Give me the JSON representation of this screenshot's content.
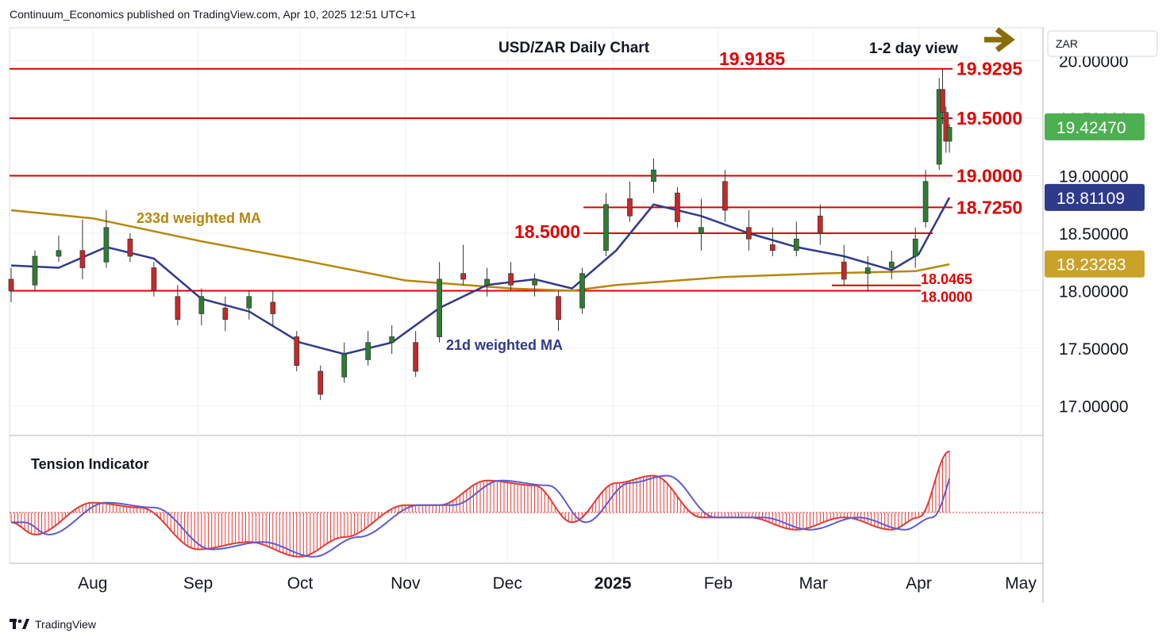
{
  "publisher": "Continuum_Economics published on TradingView.com, Apr 10, 2025 12:51 UTC+1",
  "footer": {
    "brand": "TradingView",
    "logo_icon": "tradingview-logo-icon"
  },
  "currency_label": "ZAR",
  "colors": {
    "up": "#2e7d32",
    "down": "#c62828",
    "level": "#e00000",
    "ma21": "#2f3a8c",
    "ma233": "#b8860b",
    "tension_fill": "#e53935",
    "tension_line": "#5b5bd6",
    "price_badge": "#4caf50",
    "ma21_badge": "#2f3a8c",
    "ma233_badge": "#c9a227"
  },
  "chart_data": [
    {
      "type": "candlestick",
      "title": "USD/ZAR Daily Chart",
      "annotation": "1-2 day view",
      "annotation_icon": "arrow-right-icon",
      "x_ticks": [
        "Aug",
        "Sep",
        "Oct",
        "Nov",
        "Dec",
        "2025",
        "Feb",
        "Mar",
        "Apr",
        "May"
      ],
      "y_ticks": [
        "20.00000",
        "19.50000",
        "19.00000",
        "18.50000",
        "18.00000",
        "17.50000",
        "17.00000"
      ],
      "ylim": [
        16.75,
        20.25
      ],
      "log_scale": false,
      "grid": true,
      "price_badges": [
        {
          "label": "19.42470",
          "value": 19.4247,
          "kind": "price"
        },
        {
          "label": "18.81109",
          "value": 18.81109,
          "kind": "ma21"
        },
        {
          "label": "18.23283",
          "value": 18.23283,
          "kind": "ma233"
        }
      ],
      "levels": [
        {
          "label": "19.9295",
          "value": 19.9295
        },
        {
          "label": "19.5000",
          "value": 19.5
        },
        {
          "label": "19.0000",
          "value": 19.0
        },
        {
          "label": "18.7250",
          "value": 18.725
        },
        {
          "label": "18.5000",
          "value": 18.5
        },
        {
          "label": "18.0465",
          "value": 18.0465
        },
        {
          "label": "18.0000",
          "value": 18.0
        }
      ],
      "peak_label": "19.9185",
      "series": [
        {
          "name": "233d weighted MA",
          "x": [
            "2024-07-08",
            "2024-08-01",
            "2024-09-02",
            "2024-10-01",
            "2024-11-01",
            "2024-12-02",
            "2024-12-20",
            "2025-01-02",
            "2025-02-03",
            "2025-03-03",
            "2025-03-31",
            "2025-04-10"
          ],
          "values": [
            18.7,
            18.63,
            18.43,
            18.27,
            18.09,
            18.02,
            18.0,
            18.05,
            18.12,
            18.15,
            18.17,
            18.23
          ]
        },
        {
          "name": "21d weighted MA",
          "x": [
            "2024-07-08",
            "2024-07-22",
            "2024-08-05",
            "2024-08-19",
            "2024-09-02",
            "2024-09-16",
            "2024-10-01",
            "2024-10-14",
            "2024-10-28",
            "2024-11-11",
            "2024-11-25",
            "2024-12-09",
            "2024-12-20",
            "2025-01-02",
            "2025-01-13",
            "2025-01-27",
            "2025-02-10",
            "2025-02-24",
            "2025-03-10",
            "2025-03-24",
            "2025-04-01",
            "2025-04-10"
          ],
          "values": [
            18.22,
            18.2,
            18.38,
            18.28,
            17.93,
            17.82,
            17.55,
            17.45,
            17.55,
            17.85,
            18.05,
            18.1,
            18.02,
            18.35,
            18.75,
            18.65,
            18.5,
            18.38,
            18.3,
            18.18,
            18.32,
            18.81
          ]
        }
      ],
      "ohlc_approx": [
        [
          "2024-07-08",
          18.1,
          18.2,
          17.9,
          18.0
        ],
        [
          "2024-07-15",
          18.05,
          18.35,
          18.0,
          18.3
        ],
        [
          "2024-07-22",
          18.3,
          18.48,
          18.25,
          18.35
        ],
        [
          "2024-07-29",
          18.35,
          18.62,
          18.1,
          18.2
        ],
        [
          "2024-08-05",
          18.25,
          18.7,
          18.2,
          18.55
        ],
        [
          "2024-08-12",
          18.45,
          18.5,
          18.25,
          18.3
        ],
        [
          "2024-08-19",
          18.2,
          18.25,
          17.95,
          18.0
        ],
        [
          "2024-08-26",
          17.95,
          18.05,
          17.7,
          17.75
        ],
        [
          "2024-09-02",
          17.8,
          18.02,
          17.7,
          17.95
        ],
        [
          "2024-09-09",
          17.85,
          17.95,
          17.65,
          17.75
        ],
        [
          "2024-09-16",
          17.85,
          18.0,
          17.75,
          17.95
        ],
        [
          "2024-09-23",
          17.9,
          18.0,
          17.7,
          17.8
        ],
        [
          "2024-09-30",
          17.6,
          17.65,
          17.3,
          17.35
        ],
        [
          "2024-10-07",
          17.3,
          17.35,
          17.05,
          17.1
        ],
        [
          "2024-10-14",
          17.25,
          17.55,
          17.2,
          17.45
        ],
        [
          "2024-10-21",
          17.4,
          17.65,
          17.35,
          17.55
        ],
        [
          "2024-10-28",
          17.55,
          17.7,
          17.45,
          17.6
        ],
        [
          "2024-11-04",
          17.55,
          17.65,
          17.25,
          17.3
        ],
        [
          "2024-11-11",
          17.6,
          18.25,
          17.55,
          18.1
        ],
        [
          "2024-11-18",
          18.15,
          18.4,
          18.05,
          18.1
        ],
        [
          "2024-11-25",
          18.05,
          18.2,
          17.95,
          18.1
        ],
        [
          "2024-12-02",
          18.15,
          18.25,
          18.0,
          18.05
        ],
        [
          "2024-12-09",
          18.05,
          18.15,
          17.95,
          18.1
        ],
        [
          "2024-12-16",
          17.95,
          18.0,
          17.65,
          17.75
        ],
        [
          "2024-12-23",
          17.85,
          18.2,
          17.8,
          18.15
        ],
        [
          "2024-12-30",
          18.35,
          18.85,
          18.3,
          18.75
        ],
        [
          "2025-01-06",
          18.8,
          18.95,
          18.6,
          18.65
        ],
        [
          "2025-01-13",
          18.95,
          19.15,
          18.85,
          19.05
        ],
        [
          "2025-01-20",
          18.85,
          18.9,
          18.55,
          18.6
        ],
        [
          "2025-01-27",
          18.5,
          18.8,
          18.35,
          18.55
        ],
        [
          "2025-02-03",
          18.95,
          19.05,
          18.6,
          18.7
        ],
        [
          "2025-02-10",
          18.55,
          18.7,
          18.35,
          18.45
        ],
        [
          "2025-02-17",
          18.4,
          18.55,
          18.3,
          18.35
        ],
        [
          "2025-02-24",
          18.35,
          18.6,
          18.3,
          18.45
        ],
        [
          "2025-03-03",
          18.65,
          18.75,
          18.4,
          18.5
        ],
        [
          "2025-03-10",
          18.25,
          18.4,
          18.05,
          18.1
        ],
        [
          "2025-03-17",
          18.15,
          18.3,
          18.0,
          18.2
        ],
        [
          "2025-03-24",
          18.2,
          18.35,
          18.1,
          18.25
        ],
        [
          "2025-03-31",
          18.3,
          18.55,
          18.2,
          18.45
        ],
        [
          "2025-04-03",
          18.6,
          19.05,
          18.55,
          18.95
        ],
        [
          "2025-04-07",
          19.1,
          19.85,
          19.05,
          19.75
        ],
        [
          "2025-04-08",
          19.75,
          19.93,
          19.45,
          19.55
        ],
        [
          "2025-04-09",
          19.55,
          19.6,
          19.2,
          19.3
        ],
        [
          "2025-04-10",
          19.3,
          19.45,
          19.2,
          19.42
        ]
      ]
    },
    {
      "type": "line",
      "title": "Tension Indicator",
      "series": [
        {
          "name": "tension",
          "x": [
            "2024-07-08",
            "2024-07-15",
            "2024-08-01",
            "2024-08-15",
            "2024-09-01",
            "2024-09-16",
            "2024-10-01",
            "2024-10-14",
            "2024-11-01",
            "2024-11-11",
            "2024-11-25",
            "2024-12-09",
            "2024-12-20",
            "2025-01-02",
            "2025-01-13",
            "2025-01-27",
            "2025-02-10",
            "2025-02-24",
            "2025-03-10",
            "2025-03-24",
            "2025-04-01",
            "2025-04-10"
          ],
          "values": [
            -0.2,
            -0.45,
            0.2,
            0.1,
            -0.75,
            -0.6,
            -0.9,
            -0.5,
            0.15,
            0.15,
            0.65,
            0.55,
            -0.2,
            0.6,
            0.75,
            -0.1,
            -0.1,
            -0.35,
            -0.1,
            -0.35,
            -0.1,
            1.25
          ]
        }
      ]
    }
  ]
}
